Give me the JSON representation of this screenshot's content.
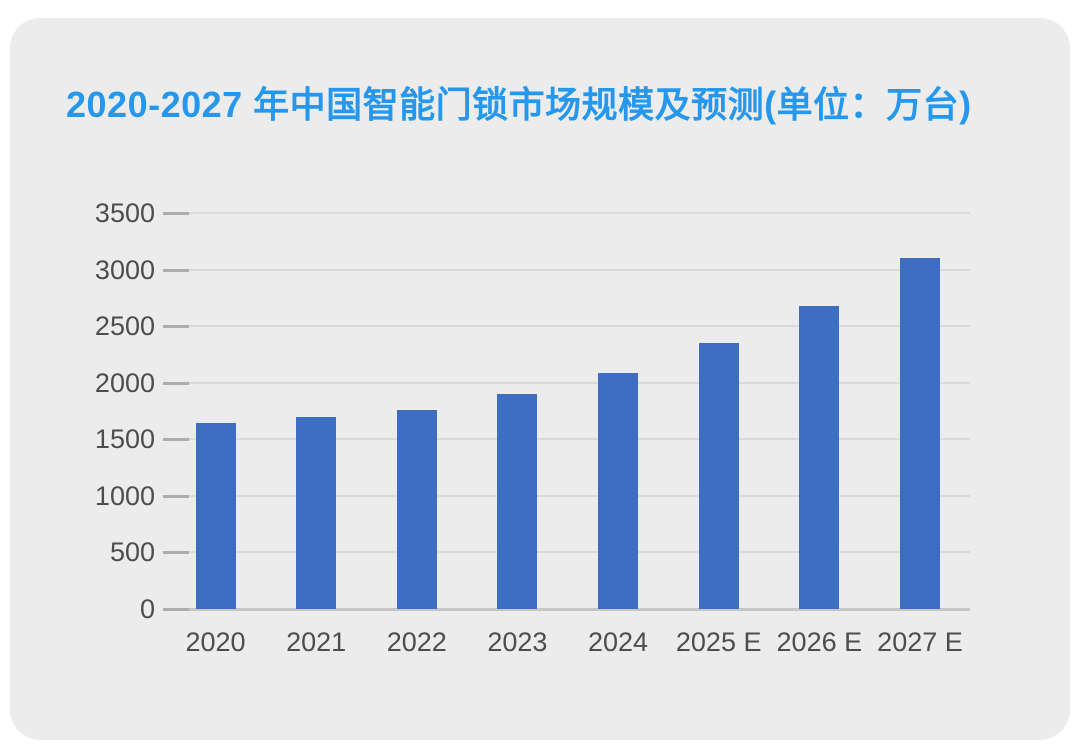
{
  "title": "2020-2027 年中国智能门锁市场规模及预测(单位：万台)",
  "colors": {
    "title_text": "#2598EE",
    "bar": "#3D6EC2",
    "card_background": "#ECECEC",
    "gridline": "#D9D9D9",
    "axis_baseline": "#C6C6C6",
    "tick_mark": "#ADADAD",
    "axis_text": "#4D4D4D"
  },
  "chart_data": {
    "type": "bar",
    "title": "2020-2027 年中国智能门锁市场规模及预测(单位：万台)",
    "categories": [
      "2020",
      "2021",
      "2022",
      "2023",
      "2024",
      "2025 E",
      "2026 E",
      "2027 E"
    ],
    "values": [
      1640,
      1695,
      1760,
      1900,
      2090,
      2350,
      2680,
      3100
    ],
    "unit": "万台",
    "xlabel": "",
    "ylabel": "",
    "ylim": [
      0,
      3500
    ],
    "ytick_step": 500,
    "ytick_labels": [
      "0",
      "500",
      "1000",
      "1500",
      "2000",
      "2500",
      "3000",
      "3500"
    ],
    "grid": true,
    "legend": "none",
    "bar_color": "#3D6EC2"
  }
}
